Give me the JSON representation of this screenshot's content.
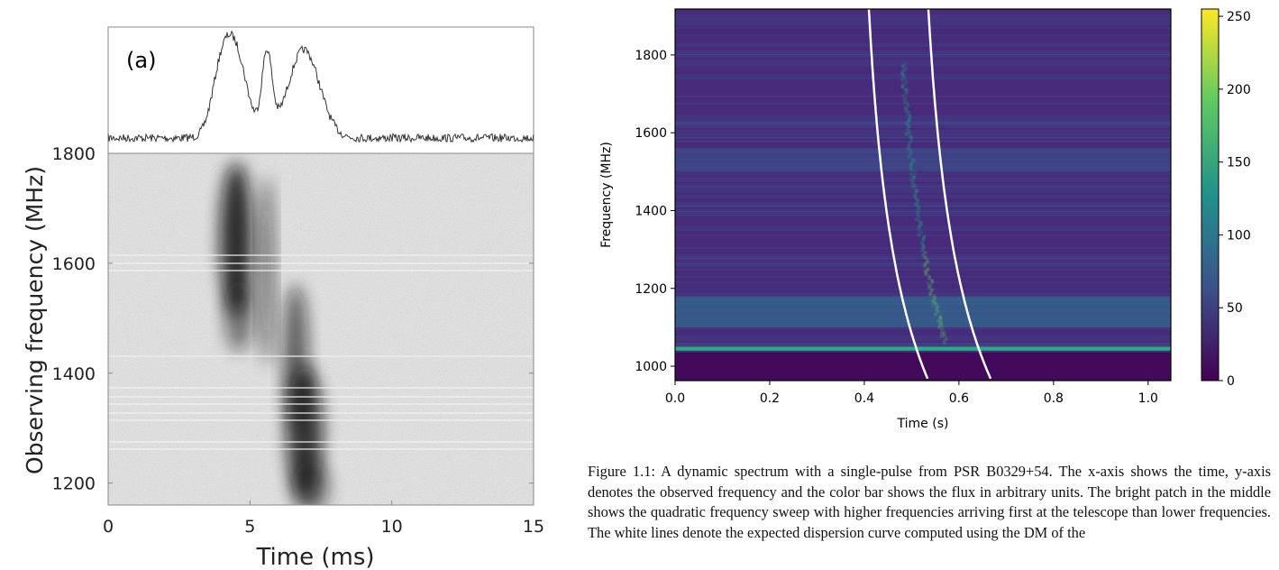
{
  "panel_a": {
    "label": "(a)",
    "xlabel": "Time (ms)",
    "ylabel": "Observing frequency (MHz)",
    "xlim": [
      0,
      15
    ],
    "xticks": [
      0,
      5,
      10,
      15
    ],
    "ylim": [
      1160,
      1800
    ],
    "yticks": [
      1200,
      1400,
      1600,
      1800
    ]
  },
  "panel_b": {
    "xlabel": "Time (s)",
    "ylabel": "Frequency (MHz)",
    "xlim": [
      0,
      1.048
    ],
    "xticks": [
      {
        "value": 0,
        "label": "0.0"
      },
      0.2,
      0.4,
      0.6,
      0.8,
      {
        "value": 1,
        "label": "1.0"
      }
    ],
    "ylim": [
      963,
      1918
    ],
    "yticks": [
      1000,
      1200,
      1400,
      1600,
      1800
    ],
    "colorbar": {
      "lim": [
        0,
        255
      ],
      "ticks": [
        0,
        50,
        100,
        150,
        200,
        250
      ]
    }
  },
  "caption": "Figure 1.1: A dynamic spectrum with a single-pulse from PSR B0329+54. The x-axis shows the time, y-axis denotes the observed frequency and the color bar shows the flux in arbitrary units. The bright patch in the middle shows the quadratic frequency sweep with higher frequencies arriving first at the telescope than lower frequencies. The white lines denote the expected dispersion curve computed using the DM of the"
}
